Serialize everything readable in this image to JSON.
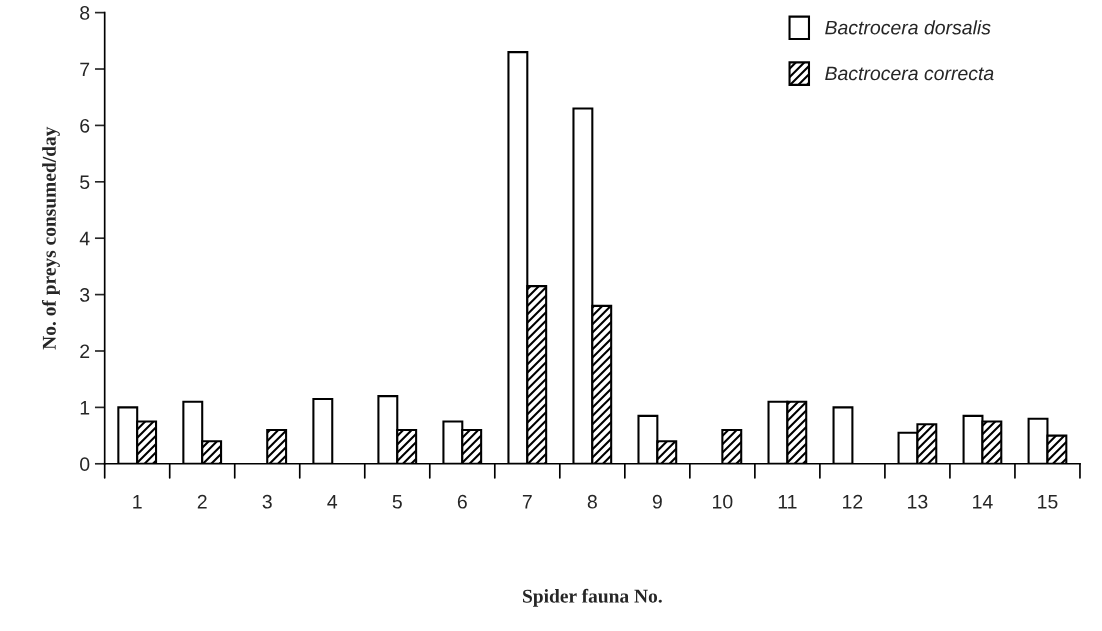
{
  "chart_data": {
    "type": "bar",
    "xlabel": "Spider fauna No.",
    "ylabel": "No. of preys consumed/day",
    "categories": [
      "1",
      "2",
      "3",
      "4",
      "5",
      "6",
      "7",
      "8",
      "9",
      "10",
      "11",
      "12",
      "13",
      "14",
      "15"
    ],
    "series": [
      {
        "name": "Bactrocera dorsalis",
        "color": "#ffffff",
        "values": [
          1.0,
          1.1,
          null,
          1.15,
          1.2,
          0.75,
          7.3,
          6.3,
          0.85,
          null,
          1.1,
          1.0,
          0.55,
          0.85,
          0.8
        ]
      },
      {
        "name": "Bactrocera correcta",
        "color": "#000000",
        "values": [
          0.75,
          0.4,
          0.6,
          null,
          0.6,
          0.6,
          3.15,
          2.8,
          0.4,
          0.6,
          1.1,
          null,
          0.7,
          0.75,
          0.5
        ]
      }
    ],
    "ylim": [
      0,
      8
    ],
    "yticks": [
      0,
      1,
      2,
      3,
      4,
      5,
      6,
      7,
      8
    ],
    "grid": false,
    "legend": "top right"
  }
}
